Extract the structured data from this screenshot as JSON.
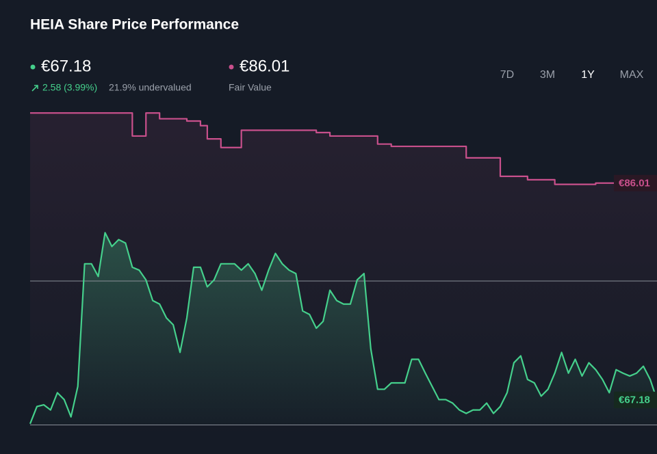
{
  "header": {
    "title": "HEIA Share Price Performance",
    "price": "€67.18",
    "change": "2.58 (3.99%)",
    "valuation": "21.9% undervalued",
    "fair_value": "€86.01",
    "fair_value_label": "Fair Value",
    "ranges": [
      "7D",
      "3M",
      "1Y",
      "MAX"
    ],
    "selected_range": "1Y"
  },
  "chart_data": {
    "type": "line",
    "ylim": [
      63.9,
      93.6
    ],
    "yticks": [
      65,
      77.5
    ],
    "grid": true,
    "series": [
      {
        "name": "Share Price",
        "color": "#45d08c",
        "end_label": "€67.18",
        "values": [
          65.1,
          66.6,
          66.75,
          66.3,
          67.8,
          67.2,
          65.7,
          68.35,
          79.0,
          79.0,
          77.9,
          81.7,
          80.5,
          81.1,
          80.8,
          78.7,
          78.45,
          77.6,
          75.8,
          75.5,
          74.3,
          73.7,
          71.3,
          74.3,
          78.7,
          78.7,
          77.0,
          77.6,
          79.0,
          79.0,
          79.0,
          78.45,
          79.0,
          78.15,
          76.7,
          78.45,
          79.9,
          79.0,
          78.45,
          78.15,
          74.9,
          74.6,
          73.4,
          74.0,
          76.7,
          75.8,
          75.5,
          75.5,
          77.6,
          78.15,
          71.6,
          68.1,
          68.1,
          68.65,
          68.65,
          68.65,
          70.7,
          70.7,
          69.5,
          68.35,
          67.2,
          67.2,
          66.9,
          66.3,
          66.0,
          66.3,
          66.3,
          66.9,
          66.0,
          66.6,
          67.8,
          70.4,
          71.0,
          68.95,
          68.65,
          67.5,
          68.1,
          69.5,
          71.3,
          69.5,
          70.7,
          69.25,
          70.4,
          69.8,
          68.95,
          67.8,
          69.8,
          69.5,
          69.25,
          69.5,
          70.1,
          68.95,
          67.18
        ]
      },
      {
        "name": "Fair Value",
        "color": "#c9508c",
        "step": true,
        "end_label": "€86.01",
        "values": [
          92.1,
          92.1,
          92.1,
          92.1,
          92.1,
          92.1,
          92.1,
          92.1,
          92.1,
          92.1,
          92.1,
          92.1,
          92.1,
          92.1,
          92.1,
          90.1,
          90.1,
          92.1,
          92.1,
          91.6,
          91.6,
          91.6,
          91.6,
          91.4,
          91.4,
          91.0,
          89.85,
          89.85,
          89.1,
          89.1,
          89.1,
          90.6,
          90.6,
          90.6,
          90.6,
          90.6,
          90.6,
          90.6,
          90.6,
          90.6,
          90.6,
          90.6,
          90.4,
          90.4,
          90.1,
          90.1,
          90.1,
          90.1,
          90.1,
          90.1,
          90.1,
          89.4,
          89.4,
          89.2,
          89.2,
          89.2,
          89.2,
          89.2,
          89.2,
          89.2,
          89.2,
          89.2,
          89.2,
          89.2,
          88.2,
          88.2,
          88.2,
          88.2,
          88.2,
          86.6,
          86.6,
          86.6,
          86.6,
          86.3,
          86.3,
          86.3,
          86.3,
          85.9,
          85.9,
          85.9,
          85.9,
          85.9,
          85.9,
          86.01,
          86.01,
          86.01,
          86.01,
          86.01,
          86.01,
          86.01,
          86.01,
          86.01,
          86.01
        ]
      }
    ]
  }
}
